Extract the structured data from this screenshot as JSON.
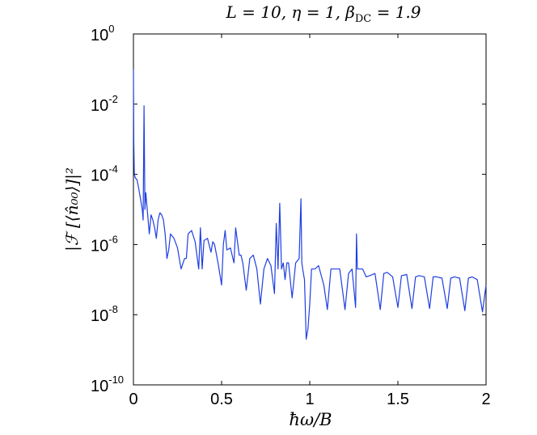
{
  "chart_data": {
    "type": "line",
    "title": "L = 10, η = 1, β_DC = 1.9",
    "title_parts": {
      "main": "L = 10, η = 1, β",
      "sub": "DC",
      "tail": " = 1.9"
    },
    "xlabel": "ħω/B",
    "ylabel": "|ℱ [⟨n̂₀₀⟩]|²",
    "xlim": [
      0,
      2
    ],
    "ylim": [
      1e-10,
      1
    ],
    "yscale": "log",
    "grid": false,
    "line_color": "#1f3fe0",
    "x_ticks": [
      {
        "value": 0,
        "label": "0"
      },
      {
        "value": 0.5,
        "label": "0.5"
      },
      {
        "value": 1,
        "label": "1"
      },
      {
        "value": 1.5,
        "label": "1.5"
      },
      {
        "value": 2,
        "label": "2"
      }
    ],
    "y_ticks": [
      {
        "value": 1,
        "base": "10",
        "exp": "0"
      },
      {
        "value": 0.01,
        "base": "10",
        "exp": "-2"
      },
      {
        "value": 0.0001,
        "base": "10",
        "exp": "-4"
      },
      {
        "value": 1e-06,
        "base": "10",
        "exp": "-6"
      },
      {
        "value": 1e-08,
        "base": "10",
        "exp": "-8"
      },
      {
        "value": 1e-10,
        "base": "10",
        "exp": "-10"
      }
    ],
    "series": [
      {
        "x": [
          0,
          0.002,
          0.005,
          0.01,
          0.02,
          0.03,
          0.04,
          0.05,
          0.055,
          0.06,
          0.065,
          0.07,
          0.08,
          0.09,
          0.1,
          0.11,
          0.12,
          0.13,
          0.14,
          0.15,
          0.16,
          0.17,
          0.18,
          0.19,
          0.2,
          0.21,
          0.23,
          0.25,
          0.27,
          0.29,
          0.3,
          0.31,
          0.33,
          0.35,
          0.37,
          0.38,
          0.39,
          0.4,
          0.42,
          0.44,
          0.45,
          0.46,
          0.48,
          0.5,
          0.51,
          0.52,
          0.53,
          0.55,
          0.57,
          0.58,
          0.6,
          0.61,
          0.62,
          0.64,
          0.66,
          0.68,
          0.7,
          0.72,
          0.74,
          0.76,
          0.78,
          0.8,
          0.81,
          0.82,
          0.83,
          0.84,
          0.85,
          0.86,
          0.87,
          0.88,
          0.9,
          0.92,
          0.94,
          0.95,
          0.955,
          0.96,
          0.97,
          0.98,
          0.99,
          1.0,
          1.01,
          1.03,
          1.05,
          1.08,
          1.1,
          1.12,
          1.14,
          1.17,
          1.2,
          1.22,
          1.24,
          1.26,
          1.265,
          1.27,
          1.3,
          1.32,
          1.34,
          1.37,
          1.4,
          1.42,
          1.44,
          1.47,
          1.5,
          1.52,
          1.55,
          1.58,
          1.6,
          1.62,
          1.65,
          1.68,
          1.7,
          1.72,
          1.75,
          1.78,
          1.8,
          1.82,
          1.85,
          1.88,
          1.9,
          1.92,
          1.95,
          1.98,
          2.0
        ],
        "y": [
          0.1,
          0.001,
          0.0001,
          8e-05,
          7e-05,
          4e-05,
          2e-05,
          1e-05,
          5e-06,
          0.009,
          1e-05,
          3e-05,
          8e-06,
          2e-06,
          7e-06,
          5e-06,
          3e-06,
          1.5e-06,
          5e-06,
          8e-06,
          7e-06,
          5e-06,
          2e-06,
          4e-07,
          7e-07,
          2e-06,
          1.5e-06,
          8e-07,
          2e-07,
          4e-07,
          4e-07,
          2e-06,
          2.5e-06,
          1.2e-06,
          2e-07,
          3e-06,
          2e-07,
          1.3e-06,
          1.5e-06,
          6e-07,
          1.2e-06,
          1e-06,
          3e-07,
          7e-08,
          1e-06,
          2.5e-06,
          7e-07,
          8e-07,
          3e-07,
          3e-06,
          5e-07,
          5e-07,
          3e-07,
          5e-08,
          4e-07,
          5e-07,
          2e-07,
          2e-08,
          2e-07,
          4e-07,
          2.5e-07,
          4e-08,
          4e-06,
          2e-07,
          1.5e-05,
          2e-07,
          3e-07,
          1e-07,
          3e-07,
          3e-07,
          3e-08,
          3e-07,
          4e-07,
          2e-05,
          3e-07,
          2e-07,
          1e-07,
          2e-09,
          4e-09,
          2e-08,
          2e-07,
          2e-07,
          2.5e-07,
          7e-08,
          1.4e-08,
          2e-07,
          2e-07,
          2e-07,
          1.4e-08,
          1.5e-07,
          2e-07,
          1.6e-08,
          2e-06,
          2e-07,
          2e-07,
          1.2e-07,
          1.3e-07,
          1.5e-07,
          1.4e-08,
          1.5e-07,
          1.6e-07,
          1.2e-07,
          1.6e-08,
          1.3e-07,
          1.4e-07,
          1.5e-08,
          1.2e-07,
          1.3e-07,
          1.2e-07,
          1.5e-08,
          1.2e-07,
          1.2e-07,
          1.1e-07,
          1.5e-08,
          1.1e-07,
          1.2e-07,
          1.1e-07,
          1.3e-08,
          1.1e-07,
          1.2e-07,
          1e-07,
          1.2e-08,
          7e-08
        ]
      }
    ]
  }
}
